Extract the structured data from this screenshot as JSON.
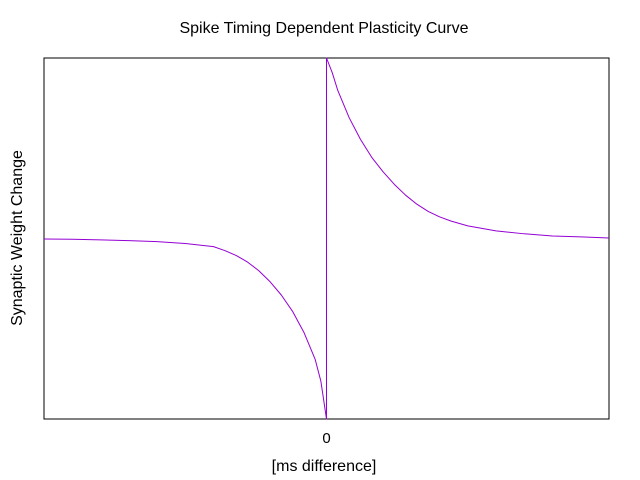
{
  "chart_data": {
    "type": "line",
    "title": "Spike Timing Dependent Plasticity Curve",
    "xlabel": "[ms difference]",
    "ylabel": "Synaptic Weight Change",
    "x_ticks": [
      {
        "value": 0,
        "label": "0"
      }
    ],
    "xlim": [
      -50,
      50
    ],
    "ylim": [
      -1,
      1
    ],
    "grid": false,
    "legend": "none",
    "series": [
      {
        "color": "#9400d3",
        "points": [
          [
            -50,
            -0.003
          ],
          [
            -45,
            -0.0045
          ],
          [
            -40,
            -0.0073
          ],
          [
            -35,
            -0.0116
          ],
          [
            -30,
            -0.0176
          ],
          [
            -25,
            -0.028
          ],
          [
            -20,
            -0.045
          ],
          [
            -18,
            -0.067
          ],
          [
            -16,
            -0.094
          ],
          [
            -14,
            -0.13
          ],
          [
            -12,
            -0.178
          ],
          [
            -10,
            -0.239
          ],
          [
            -8,
            -0.313
          ],
          [
            -6,
            -0.404
          ],
          [
            -4,
            -0.52
          ],
          [
            -2,
            -0.67
          ],
          [
            -1,
            -0.79
          ],
          [
            0,
            -1
          ],
          [
            0,
            1
          ],
          [
            1,
            0.92
          ],
          [
            2,
            0.82
          ],
          [
            4,
            0.67
          ],
          [
            6,
            0.55
          ],
          [
            8,
            0.45
          ],
          [
            10,
            0.37
          ],
          [
            12,
            0.3
          ],
          [
            14,
            0.24
          ],
          [
            16,
            0.19
          ],
          [
            18,
            0.15
          ],
          [
            20,
            0.12
          ],
          [
            22,
            0.097
          ],
          [
            25,
            0.07
          ],
          [
            30,
            0.042
          ],
          [
            35,
            0.026
          ],
          [
            40,
            0.014
          ],
          [
            45,
            0.009
          ],
          [
            50,
            0.003
          ]
        ]
      }
    ]
  }
}
